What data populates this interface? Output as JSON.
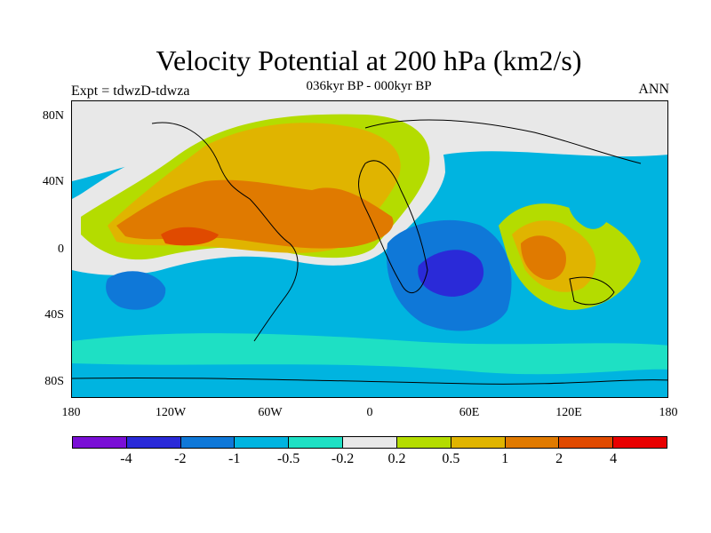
{
  "title": "Velocity Potential at 200 hPa (km2/s)",
  "subtitle": "036kyr BP - 000kyr BP",
  "left_string": "Expt = tdwzD-tdwza",
  "right_string": "ANN",
  "lat_labels": [
    "80N",
    "40N",
    "0",
    "40S",
    "80S"
  ],
  "lon_labels": [
    "180",
    "120W",
    "60W",
    "0",
    "60E",
    "120E",
    "180"
  ],
  "colorbar": {
    "colors": [
      "#7a0fd6",
      "#2a2ad8",
      "#0f78d8",
      "#00b4e0",
      "#1ee0c4",
      "#e8e8e8",
      "#b4dc00",
      "#e0b400",
      "#e07a00",
      "#e04a00",
      "#e80000"
    ],
    "labels": [
      "-4",
      "-2",
      "-1",
      "-0.5",
      "-0.2",
      "0.2",
      "0.5",
      "1",
      "2",
      "4"
    ]
  }
}
